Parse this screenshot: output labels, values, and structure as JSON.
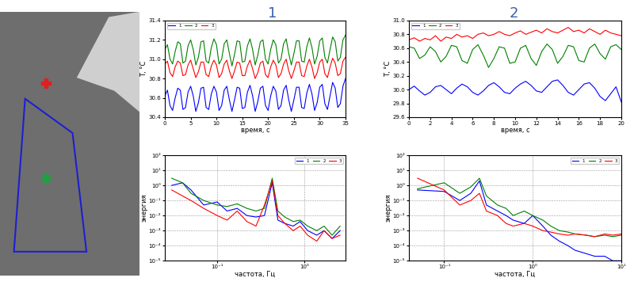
{
  "panel_labels": [
    "1",
    "2"
  ],
  "chart_data": [
    {
      "type": "line",
      "xlabel": "время, с",
      "ylabel": "T, °C",
      "xlim": [
        0,
        35
      ],
      "ylim": [
        30.4,
        31.4
      ],
      "xticks": [
        0,
        5,
        10,
        15,
        20,
        25,
        30,
        35
      ],
      "yticks": [
        30.4,
        30.6,
        30.8,
        31.0,
        31.2,
        31.4
      ],
      "grid": false,
      "legend": "upper left",
      "x": [
        0,
        0.5,
        1,
        1.5,
        2,
        2.5,
        3,
        3.5,
        4,
        4.5,
        5,
        5.5,
        6,
        6.5,
        7,
        7.5,
        8,
        8.5,
        9,
        9.5,
        10,
        10.5,
        11,
        11.5,
        12,
        12.5,
        13,
        13.5,
        14,
        14.5,
        15,
        15.5,
        16,
        16.5,
        17,
        17.5,
        18,
        18.5,
        19,
        19.5,
        20,
        20.5,
        21,
        21.5,
        22,
        22.5,
        23,
        23.5,
        24,
        24.5,
        25,
        25.5,
        26,
        26.5,
        27,
        27.5,
        28,
        28.5,
        29,
        29.5,
        30,
        30.5,
        31,
        31.5,
        32,
        32.5,
        33,
        33.5,
        34,
        34.5,
        35
      ],
      "series": [
        {
          "name": "1",
          "color": "#0000ff",
          "values": [
            30.62,
            30.68,
            30.52,
            30.47,
            30.6,
            30.7,
            30.68,
            30.48,
            30.5,
            30.66,
            30.72,
            30.62,
            30.46,
            30.55,
            30.7,
            30.71,
            30.5,
            30.48,
            30.64,
            30.72,
            30.66,
            30.47,
            30.52,
            30.68,
            30.72,
            30.58,
            30.46,
            30.58,
            30.71,
            30.7,
            30.49,
            30.5,
            30.66,
            30.73,
            30.62,
            30.46,
            30.56,
            30.7,
            30.72,
            30.52,
            30.47,
            30.62,
            30.72,
            30.67,
            30.48,
            30.52,
            30.68,
            30.73,
            30.58,
            30.46,
            30.58,
            30.71,
            30.71,
            30.5,
            30.49,
            30.65,
            30.74,
            30.64,
            30.47,
            30.55,
            30.71,
            30.74,
            30.54,
            30.48,
            30.62,
            30.76,
            30.7,
            30.5,
            30.54,
            30.72,
            30.8
          ]
        },
        {
          "name": "2",
          "color": "#008000",
          "values": [
            31.1,
            31.15,
            31.0,
            30.95,
            31.08,
            31.18,
            31.16,
            30.96,
            30.98,
            31.14,
            31.2,
            31.1,
            30.94,
            31.02,
            31.18,
            31.19,
            30.98,
            30.96,
            31.12,
            31.21,
            31.15,
            30.95,
            31.0,
            31.16,
            31.2,
            31.06,
            30.93,
            31.05,
            31.19,
            31.18,
            30.97,
            30.98,
            31.14,
            31.21,
            31.1,
            30.94,
            31.04,
            31.18,
            31.2,
            31.0,
            30.95,
            31.1,
            31.2,
            31.15,
            30.96,
            31.0,
            31.16,
            31.21,
            31.06,
            30.94,
            31.06,
            31.19,
            31.19,
            30.98,
            30.97,
            31.13,
            31.22,
            31.12,
            30.95,
            31.03,
            31.19,
            31.22,
            31.02,
            30.96,
            31.1,
            31.23,
            31.18,
            30.98,
            31.02,
            31.2,
            31.25
          ]
        },
        {
          "name": "3",
          "color": "#ff0000",
          "values": [
            30.95,
            30.98,
            30.86,
            30.82,
            30.92,
            30.98,
            30.96,
            30.83,
            30.84,
            30.94,
            30.99,
            30.9,
            30.81,
            30.87,
            30.97,
            30.97,
            30.84,
            30.82,
            30.93,
            30.99,
            30.94,
            30.81,
            30.85,
            30.95,
            30.99,
            30.88,
            30.8,
            30.88,
            30.97,
            30.96,
            30.83,
            30.83,
            30.93,
            30.99,
            30.9,
            30.8,
            30.86,
            30.96,
            30.98,
            30.84,
            30.81,
            30.92,
            30.99,
            30.94,
            30.81,
            30.85,
            30.95,
            31.0,
            30.88,
            30.8,
            30.88,
            30.97,
            30.97,
            30.83,
            30.82,
            30.93,
            31.0,
            30.92,
            30.8,
            30.86,
            30.97,
            31.0,
            30.85,
            30.81,
            30.92,
            31.01,
            30.96,
            30.83,
            30.85,
            30.98,
            31.02
          ]
        }
      ]
    },
    {
      "type": "line",
      "xlabel": "время, с",
      "ylabel": "T, °C",
      "xlim": [
        0,
        20
      ],
      "ylim": [
        29.6,
        31.0
      ],
      "xticks": [
        0,
        2,
        4,
        6,
        8,
        10,
        12,
        14,
        16,
        18,
        20
      ],
      "yticks": [
        29.6,
        29.8,
        30.0,
        30.2,
        30.4,
        30.6,
        30.8,
        31.0
      ],
      "grid": false,
      "legend": "upper left",
      "x": [
        0,
        0.5,
        1,
        1.5,
        2,
        2.5,
        3,
        3.5,
        4,
        4.5,
        5,
        5.5,
        6,
        6.5,
        7,
        7.5,
        8,
        8.5,
        9,
        9.5,
        10,
        10.5,
        11,
        11.5,
        12,
        12.5,
        13,
        13.5,
        14,
        14.5,
        15,
        15.5,
        16,
        16.5,
        17,
        17.5,
        18,
        18.5,
        19,
        19.5,
        20
      ],
      "series": [
        {
          "name": "1",
          "color": "#0000ff",
          "values": [
            30.0,
            30.05,
            29.98,
            29.92,
            29.96,
            30.04,
            30.06,
            30.0,
            29.94,
            30.02,
            30.08,
            30.04,
            29.96,
            29.92,
            29.98,
            30.06,
            30.1,
            30.04,
            29.96,
            29.94,
            30.02,
            30.08,
            30.12,
            30.06,
            29.98,
            29.96,
            30.04,
            30.12,
            30.14,
            30.06,
            29.96,
            29.92,
            30.0,
            30.08,
            30.1,
            30.02,
            29.9,
            29.84,
            29.94,
            30.04,
            29.82
          ]
        },
        {
          "name": "2",
          "color": "#008000",
          "values": [
            30.62,
            30.6,
            30.45,
            30.5,
            30.62,
            30.55,
            30.4,
            30.48,
            30.64,
            30.62,
            30.42,
            30.38,
            30.58,
            30.65,
            30.5,
            30.32,
            30.45,
            30.62,
            30.6,
            30.38,
            30.4,
            30.6,
            30.64,
            30.45,
            30.35,
            30.55,
            30.66,
            30.58,
            30.38,
            30.48,
            30.64,
            30.62,
            30.42,
            30.4,
            30.6,
            30.66,
            30.52,
            30.44,
            30.62,
            30.65,
            30.58
          ]
        },
        {
          "name": "3",
          "color": "#ff0000",
          "values": [
            30.72,
            30.75,
            30.7,
            30.74,
            30.72,
            30.78,
            30.7,
            30.76,
            30.74,
            30.8,
            30.76,
            30.78,
            30.74,
            30.8,
            30.82,
            30.78,
            30.8,
            30.84,
            30.8,
            30.78,
            30.82,
            30.85,
            30.8,
            30.83,
            30.86,
            30.82,
            30.88,
            30.84,
            30.82,
            30.86,
            30.9,
            30.84,
            30.86,
            30.82,
            30.88,
            30.84,
            30.8,
            30.86,
            30.82,
            30.8,
            30.78
          ]
        }
      ]
    },
    {
      "type": "line",
      "xlabel": "частота, Гц",
      "ylabel": "энергия",
      "log": true,
      "xlim": [
        0.025,
        3
      ],
      "ylim": [
        1e-05,
        100
      ],
      "xticks": [
        {
          "value": 0.1,
          "label": "10⁻¹"
        },
        {
          "value": 1,
          "label": "10⁰"
        }
      ],
      "yticks": [
        {
          "value": 1e-05,
          "label": "10⁻⁵"
        },
        {
          "value": 0.0001,
          "label": "10⁻⁴"
        },
        {
          "value": 0.001,
          "label": "10⁻³"
        },
        {
          "value": 0.01,
          "label": "10⁻²"
        },
        {
          "value": 0.1,
          "label": "10⁻¹"
        },
        {
          "value": 1,
          "label": "10⁰"
        },
        {
          "value": 10,
          "label": "10¹"
        },
        {
          "value": 100,
          "label": "10²"
        }
      ],
      "grid": true,
      "legend": "upper right",
      "x": [
        0.03,
        0.04,
        0.05,
        0.07,
        0.1,
        0.13,
        0.17,
        0.22,
        0.28,
        0.35,
        0.43,
        0.5,
        0.6,
        0.75,
        0.9,
        1.1,
        1.4,
        1.7,
        2.1,
        2.6
      ],
      "series": [
        {
          "name": "1",
          "color": "#0000ff",
          "values": [
            1,
            1.5,
            0.5,
            0.05,
            0.08,
            0.02,
            0.03,
            0.01,
            0.008,
            0.01,
            1.5,
            0.005,
            0.003,
            0.002,
            0.004,
            0.001,
            0.0005,
            0.001,
            0.0003,
            0.001
          ]
        },
        {
          "name": "2",
          "color": "#008000",
          "values": [
            3,
            1.5,
            0.3,
            0.1,
            0.05,
            0.04,
            0.06,
            0.03,
            0.02,
            0.03,
            3,
            0.02,
            0.008,
            0.004,
            0.005,
            0.002,
            0.001,
            0.002,
            0.0005,
            0.002
          ]
        },
        {
          "name": "3",
          "color": "#ff0000",
          "values": [
            0.5,
            0.2,
            0.1,
            0.03,
            0.01,
            0.005,
            0.02,
            0.004,
            0.002,
            0.05,
            2,
            0.01,
            0.003,
            0.001,
            0.002,
            0.0005,
            0.0002,
            0.001,
            0.0003,
            0.0005
          ]
        }
      ]
    },
    {
      "type": "line",
      "xlabel": "частота, Гц",
      "ylabel": "энергия",
      "log": true,
      "xlim": [
        0.04,
        10
      ],
      "ylim": [
        1e-05,
        100
      ],
      "xticks": [
        {
          "value": 0.1,
          "label": "10⁻¹"
        },
        {
          "value": 1,
          "label": "10⁰"
        },
        {
          "value": 10,
          "label": "10¹"
        }
      ],
      "yticks": [
        {
          "value": 1e-05,
          "label": "10⁻⁵"
        },
        {
          "value": 0.0001,
          "label": "10⁻⁴"
        },
        {
          "value": 0.001,
          "label": "10⁻³"
        },
        {
          "value": 0.01,
          "label": "10⁻²"
        },
        {
          "value": 0.1,
          "label": "10⁻¹"
        },
        {
          "value": 1,
          "label": "10⁰"
        },
        {
          "value": 10,
          "label": "10¹"
        },
        {
          "value": 100,
          "label": "10²"
        }
      ],
      "grid": true,
      "legend": "upper right",
      "x": [
        0.05,
        0.1,
        0.15,
        0.2,
        0.25,
        0.3,
        0.4,
        0.5,
        0.6,
        0.8,
        1,
        1.3,
        1.6,
        2,
        2.5,
        3,
        4,
        5,
        6.5,
        8,
        10
      ],
      "series": [
        {
          "name": "1",
          "color": "#0000ff",
          "values": [
            0.5,
            0.4,
            0.1,
            0.3,
            2,
            0.05,
            0.02,
            0.01,
            0.005,
            0.003,
            0.01,
            0.002,
            0.0005,
            0.0002,
            0.0001,
            5e-05,
            3e-05,
            2e-05,
            2e-05,
            1e-05,
            1e-05
          ]
        },
        {
          "name": "2",
          "color": "#008000",
          "values": [
            0.6,
            1.5,
            0.3,
            0.8,
            3,
            0.2,
            0.05,
            0.03,
            0.01,
            0.02,
            0.01,
            0.005,
            0.002,
            0.001,
            0.0008,
            0.0006,
            0.0005,
            0.0004,
            0.0005,
            0.0004,
            0.0005
          ]
        },
        {
          "name": "3",
          "color": "#ff0000",
          "values": [
            3,
            0.5,
            0.05,
            0.1,
            0.3,
            0.02,
            0.01,
            0.003,
            0.002,
            0.003,
            0.002,
            0.001,
            0.0008,
            0.0006,
            0.0005,
            0.0006,
            0.0005,
            0.0004,
            0.0006,
            0.0005,
            0.0006
          ]
        }
      ]
    }
  ]
}
